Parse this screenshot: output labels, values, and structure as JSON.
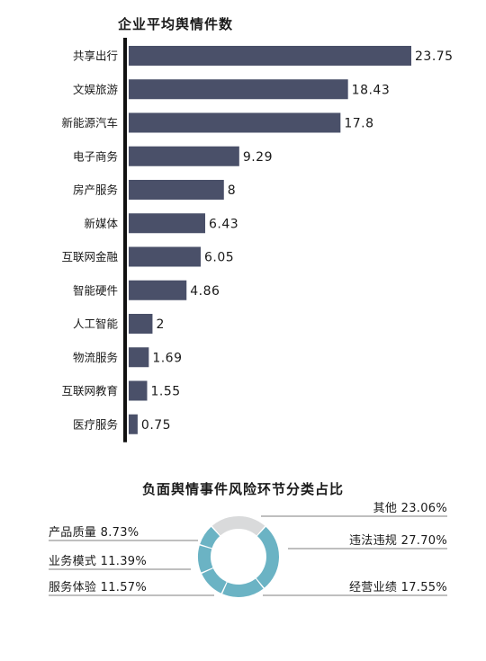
{
  "colors": {
    "bar": "#4a5069",
    "axis": "#111111",
    "donut_main": "#6bb3c4",
    "donut_other": "#d9dadb",
    "leader": "#555555"
  },
  "chart_data": [
    {
      "type": "bar",
      "orientation": "horizontal",
      "title": "企业平均舆情件数",
      "categories": [
        "共享出行",
        "文娱旅游",
        "新能源汽车",
        "电子商务",
        "房产服务",
        "新媒体",
        "互联网金融",
        "智能硬件",
        "人工智能",
        "物流服务",
        "互联网教育",
        "医疗服务"
      ],
      "values": [
        23.75,
        18.43,
        17.8,
        9.29,
        8,
        6.43,
        6.05,
        4.86,
        2,
        1.69,
        1.55,
        0.75
      ],
      "value_labels": [
        "23.75",
        "18.43",
        "17.8",
        "9.29",
        "8",
        "6.43",
        "6.05",
        "4.86",
        "2",
        "1.69",
        "1.55",
        "0.75"
      ],
      "xlim": [
        0,
        23.75
      ],
      "grid": false,
      "legend": "none"
    },
    {
      "type": "pie",
      "style": "donut",
      "title": "负面舆情事件风险环节分类占比",
      "slices": [
        {
          "name": "其他",
          "value": 23.06,
          "label": "其他 23.06%"
        },
        {
          "name": "违法违规",
          "value": 27.7,
          "label": "违法违规 27.70%"
        },
        {
          "name": "经营业绩",
          "value": 17.55,
          "label": "经营业绩 17.55%"
        },
        {
          "name": "服务体验",
          "value": 11.57,
          "label": "服务体验 11.57%"
        },
        {
          "name": "业务模式",
          "value": 11.39,
          "label": "业务模式 11.39%"
        },
        {
          "name": "产品质量",
          "value": 8.73,
          "label": "产品质量 8.73%"
        }
      ],
      "legend": "none"
    }
  ]
}
